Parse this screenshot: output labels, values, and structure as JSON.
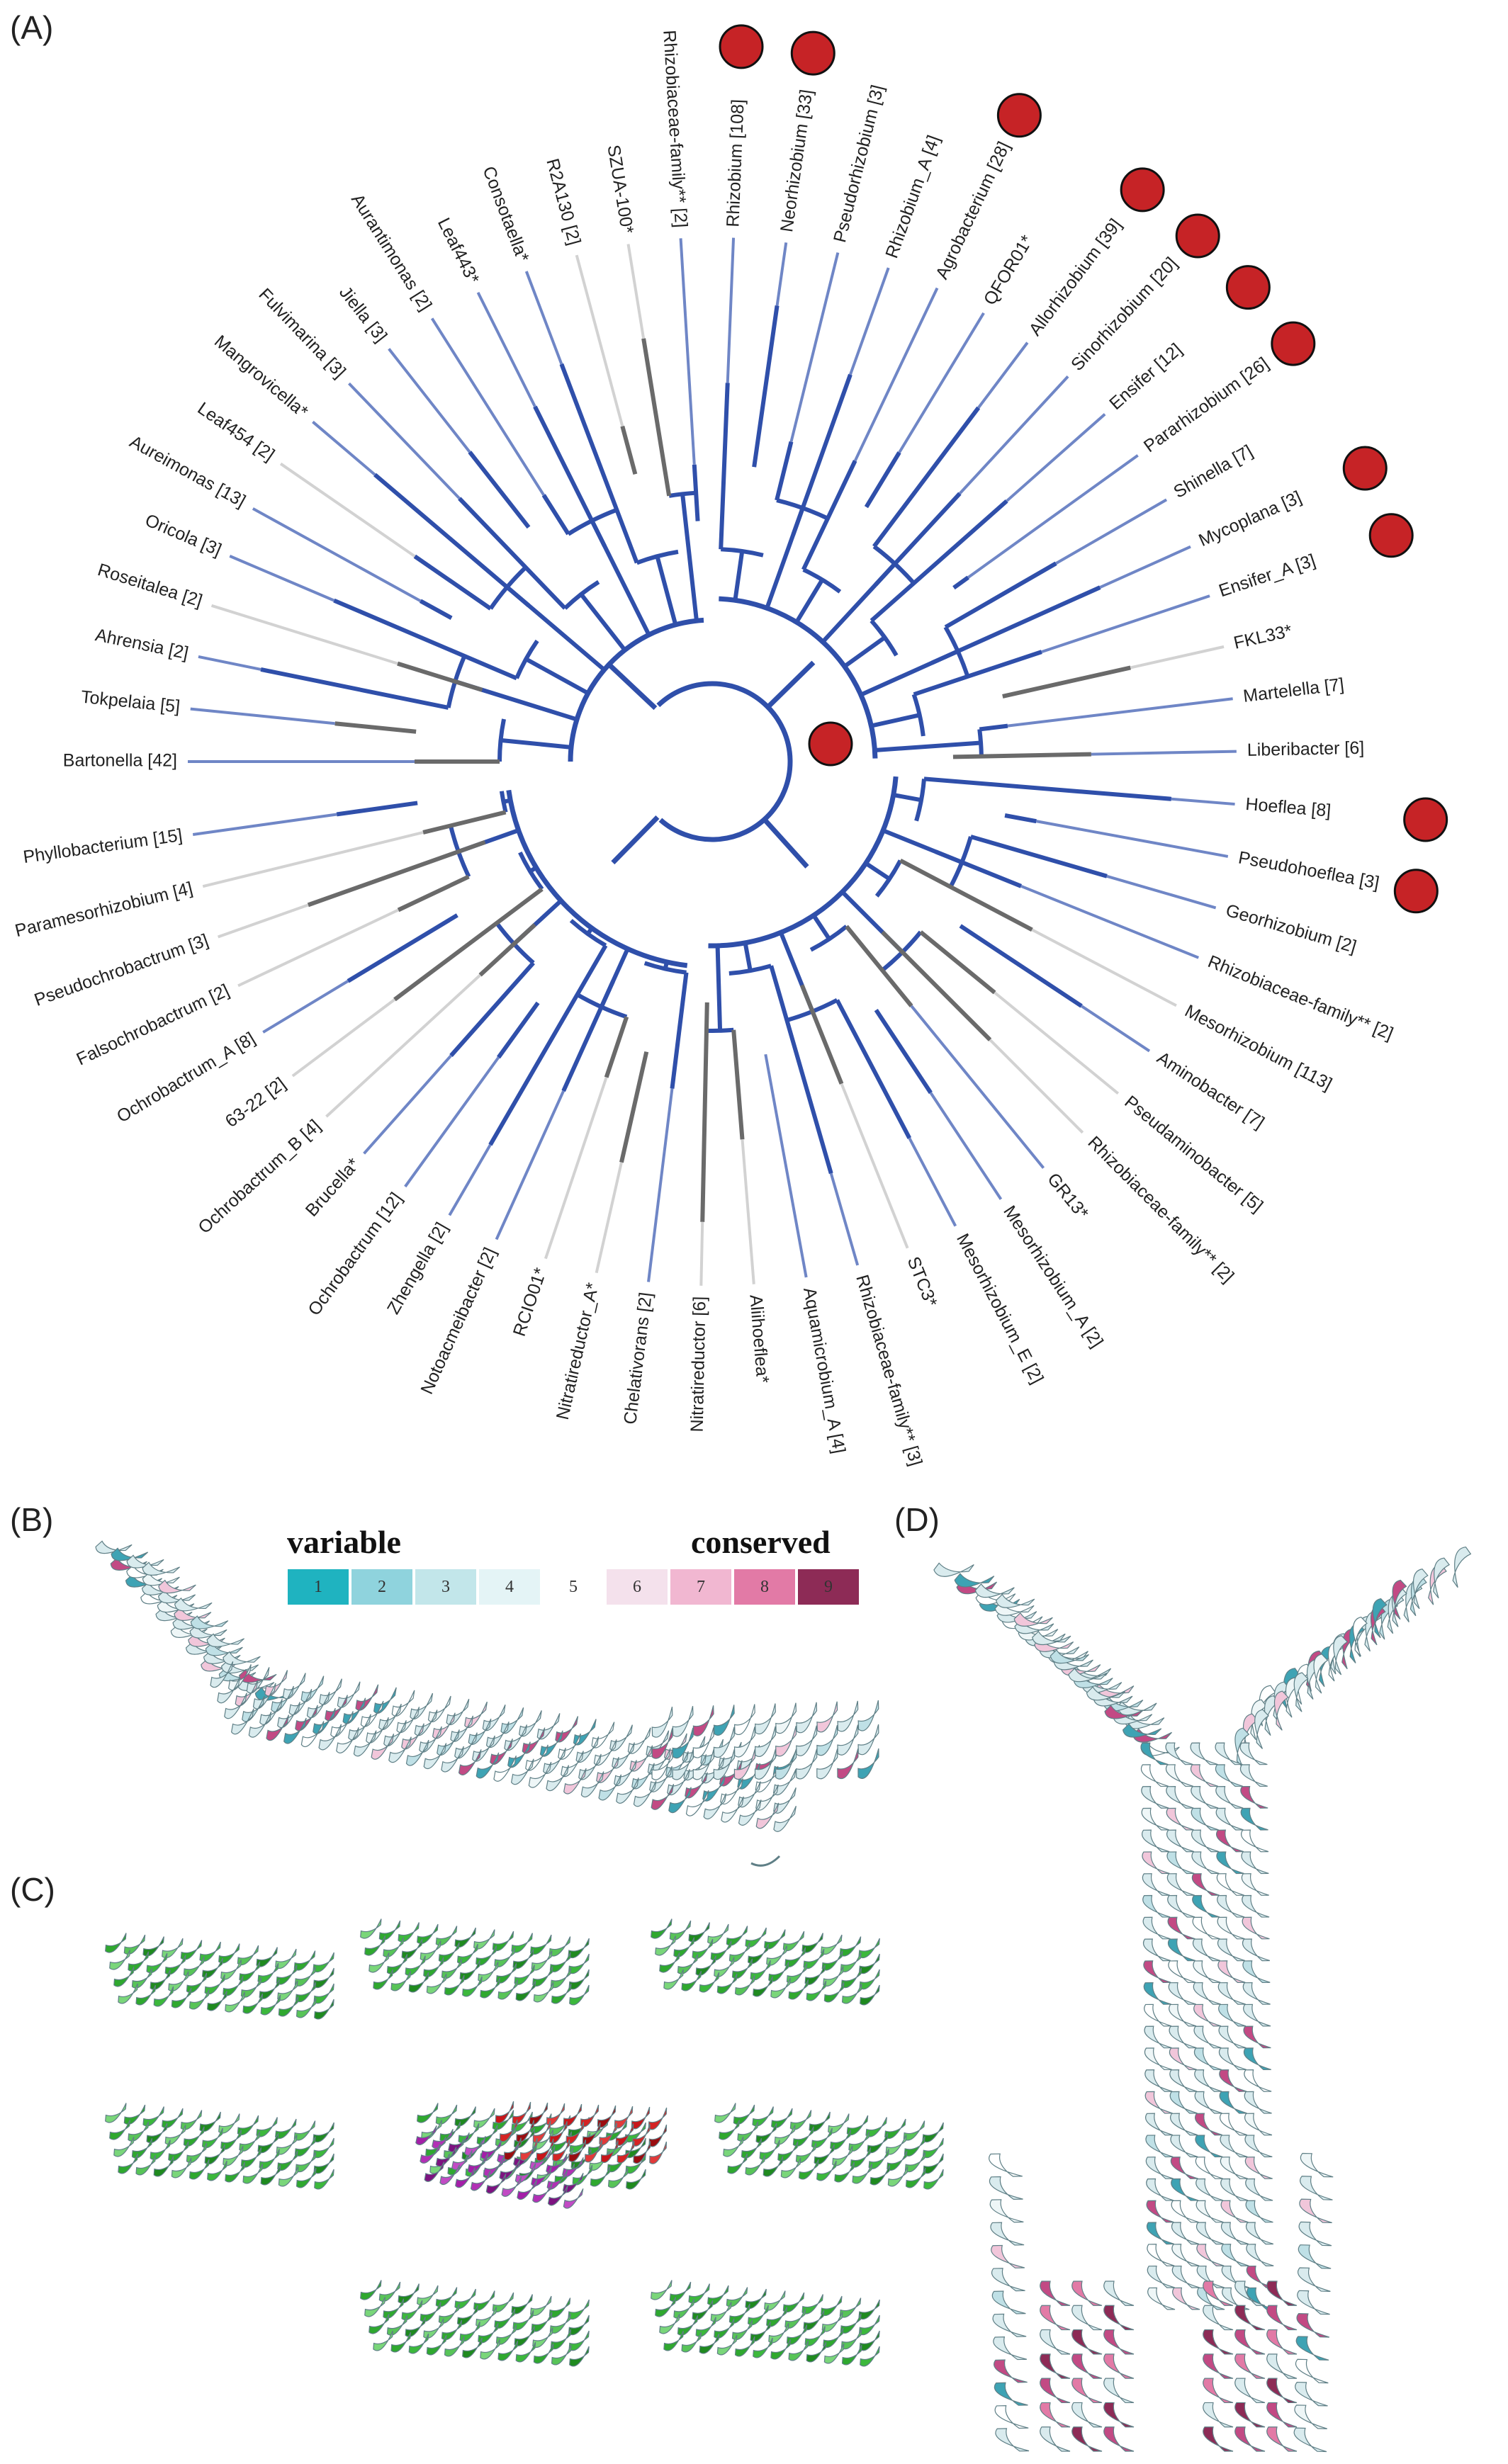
{
  "panels": {
    "a": "(A)",
    "b": "(B)",
    "c": "(C)",
    "d": "(D)"
  },
  "tree": {
    "tips": [
      "Bartonella [42]",
      "Tokpelaia [5]",
      "Ahrensia [2]",
      "Roseitalea [2]",
      "Oricola [3]",
      "Aureimonas [13]",
      "Leaf454 [2]",
      "Mangrovicella*",
      "Fulvimarina [3]",
      "Jiella [3]",
      "Aurantimonas [2]",
      "Leaf443*",
      "Consotaella*",
      "R2A130 [2]",
      "SZUA-100*",
      "Rhizobiaceae-family** [2]",
      "Rhizobium [108]",
      "Neorhizobium [33]",
      "Pseudorhizobium [3]",
      "Rhizobium_A [4]",
      "Agrobacterium [28]",
      "QFOR01*",
      "Allorhizobium [39]",
      "Sinorhizobium [20]",
      "Ensifer [12]",
      "Pararhizobium [26]",
      "Shinella [7]",
      "Mycoplana [3]",
      "Ensifer_A [3]",
      "FKL33*",
      "Martelella [7]",
      "Liberibacter [6]",
      "Hoeflea [8]",
      "Pseudohoeflea [3]",
      "Georhizobium [2]",
      "Rhizobiaceae-family** [2]",
      "Mesorhizobium [113]",
      "Aminobacter [7]",
      "Pseudaminobacter [5]",
      "Rhizobiaceae-family** [2]",
      "GR13*",
      "Mesorhizobium_A [2]",
      "Mesorhizobium_E [2]",
      "STC3*",
      "Rhizobiaceae-family** [3]",
      "Aquamicrobium_A [4]",
      "Aliihoeflea*",
      "Nitratireductor [6]",
      "Chelativorans [2]",
      "Nitratireductor_A*",
      "RCIO01*",
      "Notoacmeibacter [2]",
      "Zhengella [2]",
      "Ochrobactrum [12]",
      "Brucella*",
      "Ochrobactrum_B [4]",
      "63-22 [2]",
      "Ochrobactrum_A [8]",
      "Falsochrobactrum [2]",
      "Pseudochrobactrum [3]",
      "Paramesorhizobium [4]",
      "Phyllobacterium [15]"
    ],
    "colors": {
      "clade": "#2f4faa",
      "clade_light": "#6f86c6",
      "grey": "#6a6a6a",
      "light": "#d2d2d2",
      "marker": "#c62326"
    }
  },
  "legend": {
    "variable_label": "variable",
    "conserved_label": "conserved",
    "cells": [
      {
        "n": "1",
        "color": "#1fb3c0"
      },
      {
        "n": "2",
        "color": "#8fd3dd"
      },
      {
        "n": "3",
        "color": "#c2e6ea"
      },
      {
        "n": "4",
        "color": "#e4f4f6"
      },
      {
        "n": "5",
        "color": "#ffffff"
      },
      {
        "n": "6",
        "color": "#f4e1ec"
      },
      {
        "n": "7",
        "color": "#f1b7d1"
      },
      {
        "n": "8",
        "color": "#e27aa6"
      },
      {
        "n": "9",
        "color": "#8d2b56"
      }
    ]
  },
  "colors": {
    "helix_base": "#d9ebee",
    "helix_teal": "#3ea3b4",
    "helix_pink": "#c24a84",
    "helix_outline": "#5f7f86",
    "green": "#2fa82f",
    "red": "#c8161a",
    "magenta": "#a41fa8"
  }
}
